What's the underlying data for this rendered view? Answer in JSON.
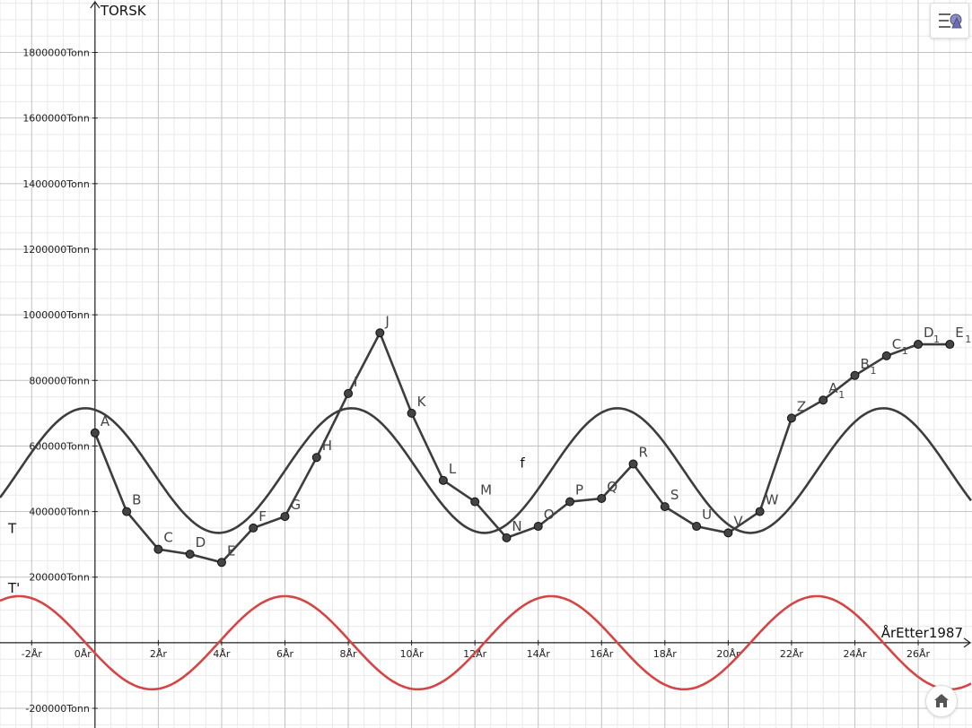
{
  "chart_data": {
    "type": "line",
    "title": "",
    "ylabel": "TORSK",
    "xlabel": "ÅrEtter1987",
    "xlim": [
      -3,
      27.7
    ],
    "ylim": [
      -260000,
      1960000
    ],
    "x_ticks": [
      -2,
      0,
      2,
      4,
      6,
      8,
      10,
      12,
      14,
      16,
      18,
      20,
      22,
      24,
      26
    ],
    "x_tick_unit": "År",
    "y_ticks": [
      -200000,
      200000,
      400000,
      600000,
      800000,
      1000000,
      1200000,
      1400000,
      1600000,
      1800000
    ],
    "y_tick_unit": "Tonn",
    "grid": true,
    "point_series": {
      "name": "f",
      "color": "#3d3d3d",
      "points": [
        {
          "label": "A",
          "sub": "",
          "x": 0,
          "y": 640000
        },
        {
          "label": "B",
          "sub": "",
          "x": 1,
          "y": 400000
        },
        {
          "label": "C",
          "sub": "",
          "x": 2,
          "y": 285000
        },
        {
          "label": "D",
          "sub": "",
          "x": 3,
          "y": 270000
        },
        {
          "label": "E",
          "sub": "",
          "x": 4,
          "y": 245000
        },
        {
          "label": "F",
          "sub": "",
          "x": 5,
          "y": 350000
        },
        {
          "label": "G",
          "sub": "",
          "x": 6,
          "y": 385000
        },
        {
          "label": "H",
          "sub": "",
          "x": 7,
          "y": 565000
        },
        {
          "label": "I",
          "sub": "",
          "x": 8,
          "y": 760000
        },
        {
          "label": "J",
          "sub": "",
          "x": 9,
          "y": 945000
        },
        {
          "label": "K",
          "sub": "",
          "x": 10,
          "y": 700000
        },
        {
          "label": "L",
          "sub": "",
          "x": 11,
          "y": 495000
        },
        {
          "label": "M",
          "sub": "",
          "x": 12,
          "y": 430000
        },
        {
          "label": "N",
          "sub": "",
          "x": 13,
          "y": 320000
        },
        {
          "label": "O",
          "sub": "",
          "x": 14,
          "y": 355000
        },
        {
          "label": "P",
          "sub": "",
          "x": 15,
          "y": 430000
        },
        {
          "label": "Q",
          "sub": "",
          "x": 16,
          "y": 440000
        },
        {
          "label": "R",
          "sub": "",
          "x": 17,
          "y": 545000
        },
        {
          "label": "S",
          "sub": "",
          "x": 18,
          "y": 415000
        },
        {
          "label": "U",
          "sub": "",
          "x": 19,
          "y": 355000
        },
        {
          "label": "V",
          "sub": "",
          "x": 20,
          "y": 335000
        },
        {
          "label": "W",
          "sub": "",
          "x": 21,
          "y": 400000
        },
        {
          "label": "Z",
          "sub": "",
          "x": 22,
          "y": 685000
        },
        {
          "label": "A",
          "sub": "1",
          "x": 23,
          "y": 740000
        },
        {
          "label": "B",
          "sub": "1",
          "x": 24,
          "y": 815000
        },
        {
          "label": "C",
          "sub": "1",
          "x": 25,
          "y": 875000
        },
        {
          "label": "D",
          "sub": "1",
          "x": 26,
          "y": 910000
        },
        {
          "label": "E",
          "sub": "1",
          "x": 27,
          "y": 910000
        }
      ]
    },
    "curves": [
      {
        "name": "T",
        "color": "#3d3d3d",
        "mean": 525000,
        "amplitude": 190000,
        "period": 8.4,
        "peak_x": 8.1
      },
      {
        "name": "T'",
        "color": "#d64545",
        "mean": 0,
        "amplitude": 142000,
        "period": 8.4,
        "peak_x": 6.0
      }
    ]
  },
  "ui": {
    "style_bar_icon": "graphics-style-bar-icon",
    "home_icon": "home-icon"
  }
}
